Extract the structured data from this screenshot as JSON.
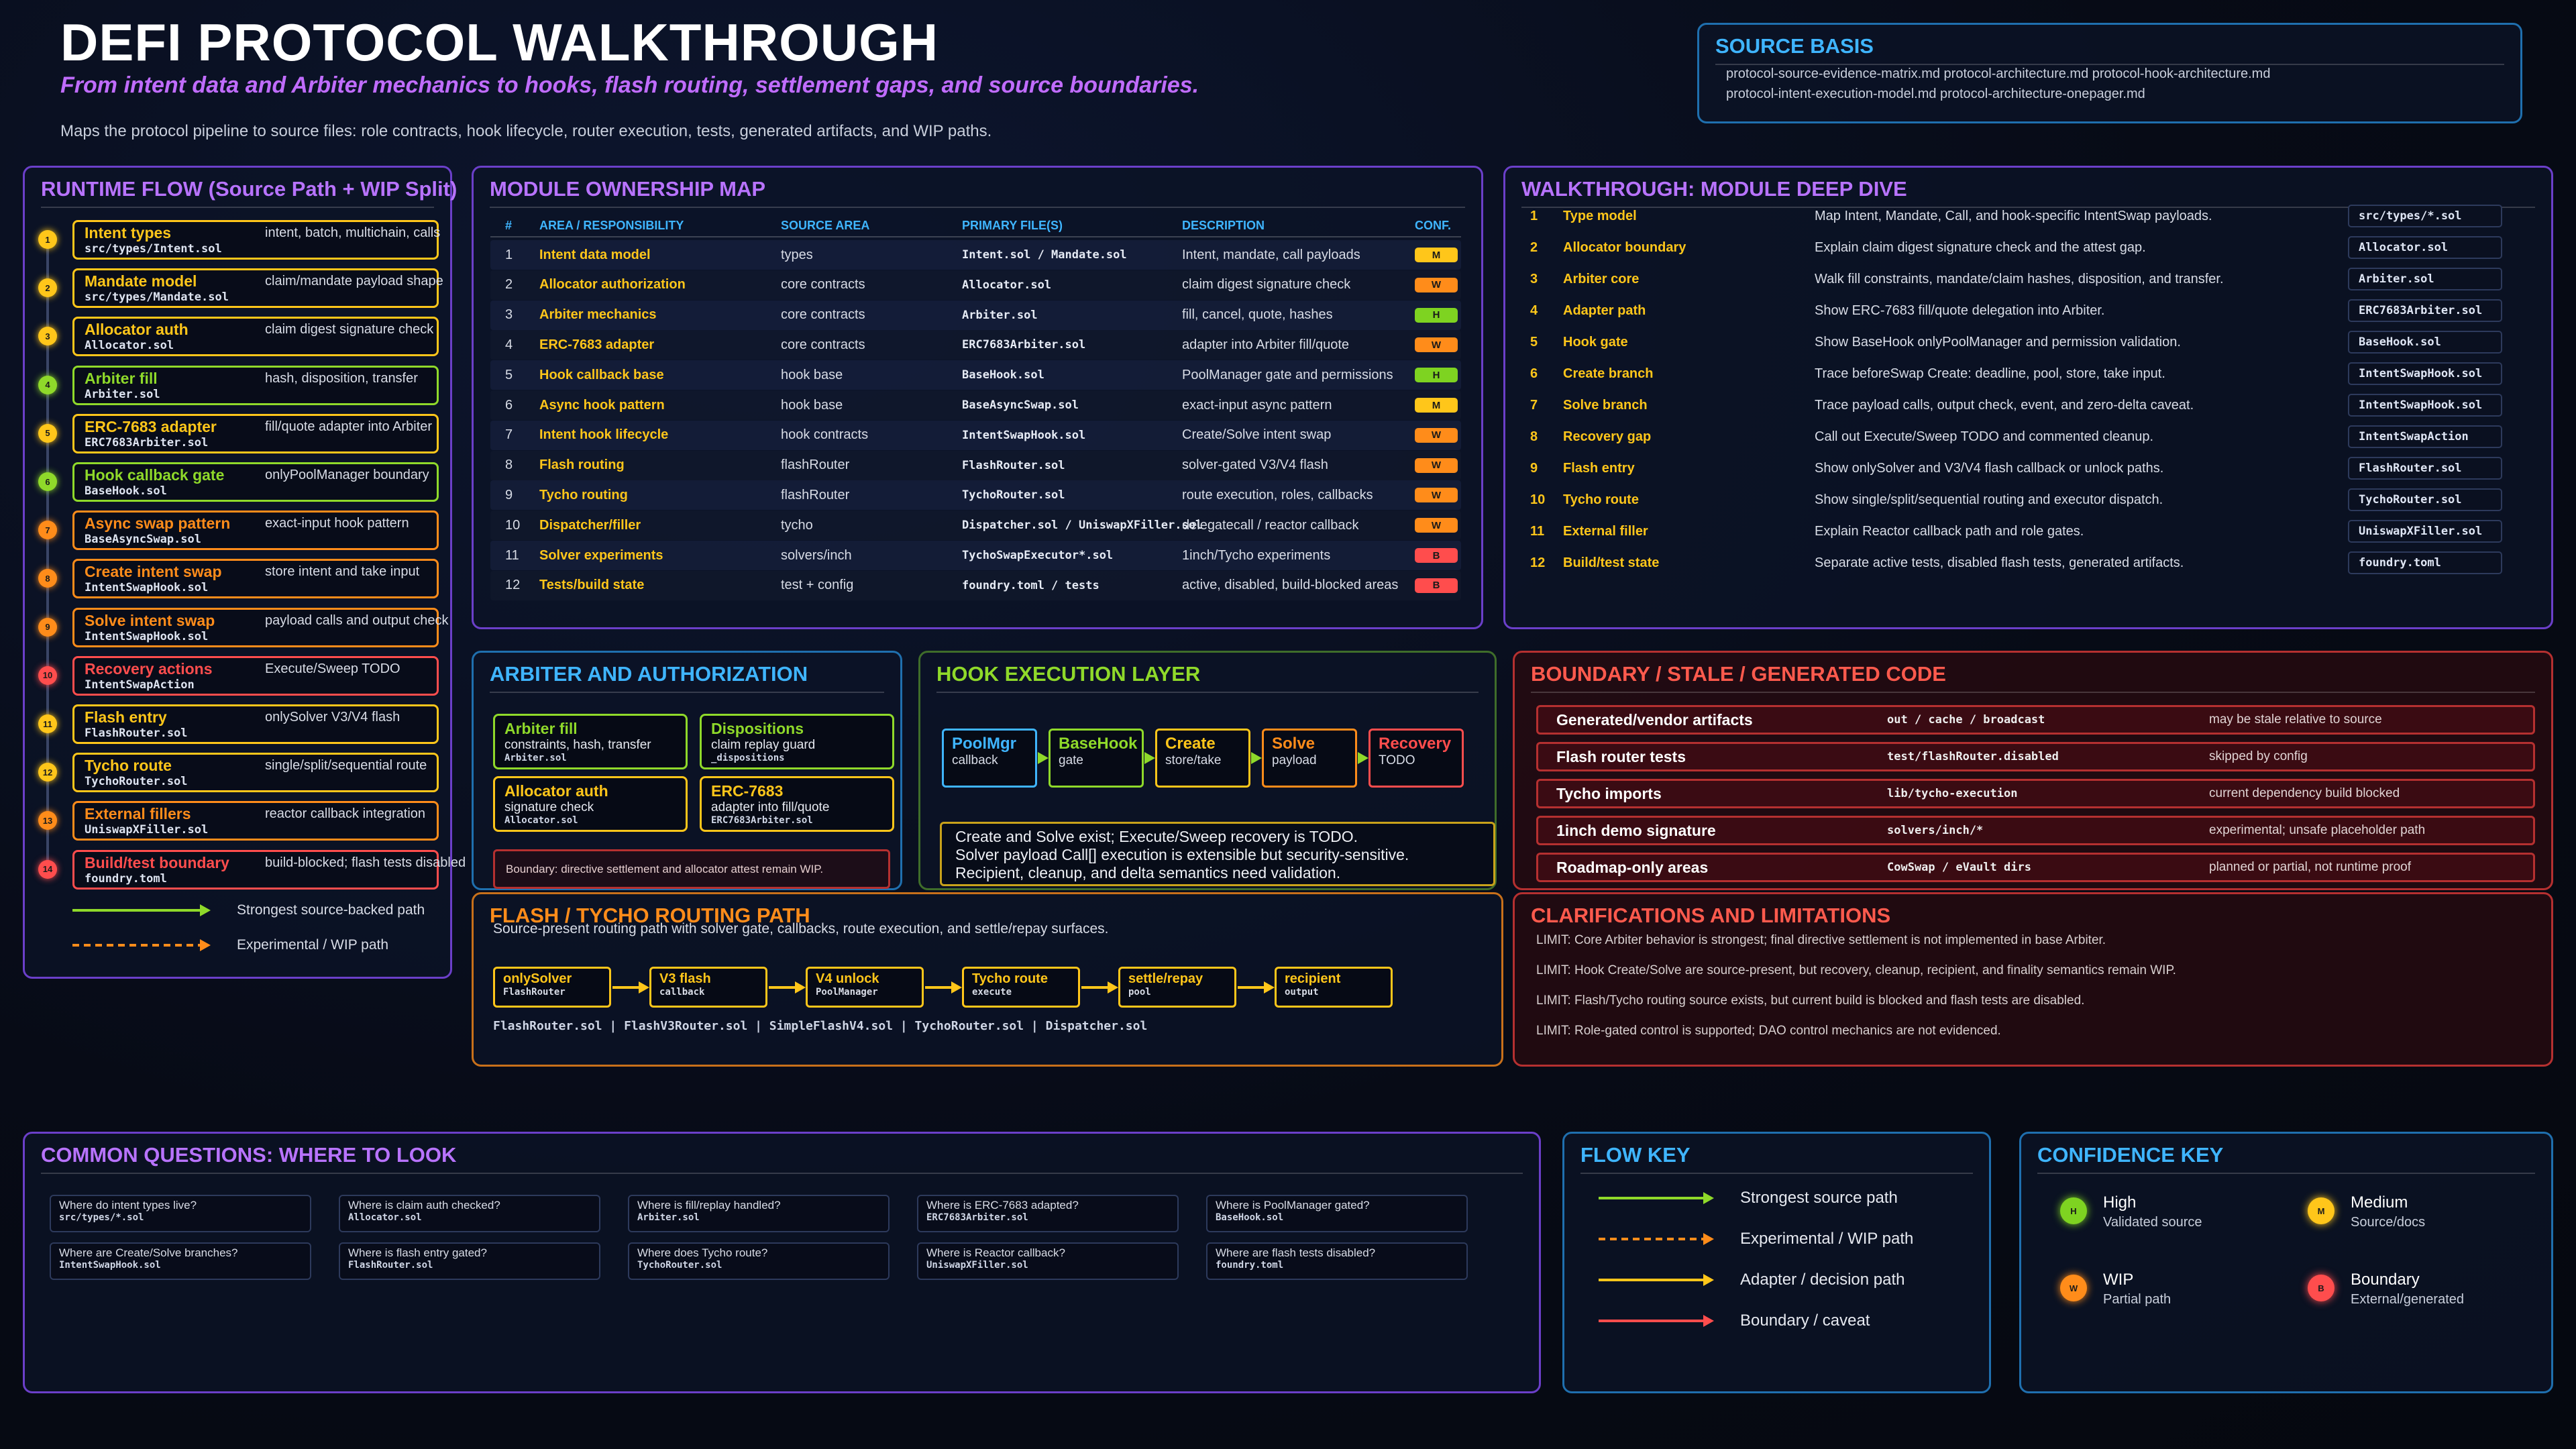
{
  "header": {
    "title": "DEFI PROTOCOL WALKTHROUGH",
    "subtitle": "From intent data and Arbiter mechanics to hooks, flash routing, settlement gaps, and source boundaries.",
    "description": "Maps the protocol pipeline to source files: role contracts, hook lifecycle, router execution, tests, generated artifacts, and WIP paths."
  },
  "source_basis": {
    "title": "SOURCE BASIS",
    "lines": [
      "protocol-source-evidence-matrix.md protocol-architecture.md protocol-hook-architecture.md",
      "protocol-intent-execution-model.md protocol-architecture-onepager.md"
    ]
  },
  "runtime_flow": {
    "title": "RUNTIME FLOW (Source Path + WIP Split)",
    "steps": [
      {
        "num": "1",
        "title": "Intent types",
        "file": "src/types/Intent.sol",
        "note": "intent, batch, multichain, calls",
        "color": "#ffc61a"
      },
      {
        "num": "2",
        "title": "Mandate model",
        "file": "src/types/Mandate.sol",
        "note": "claim/mandate payload shape",
        "color": "#ffc61a"
      },
      {
        "num": "3",
        "title": "Allocator auth",
        "file": "Allocator.sol",
        "note": "claim digest signature check",
        "color": "#ffc61a"
      },
      {
        "num": "4",
        "title": "Arbiter fill",
        "file": "Arbiter.sol",
        "note": "hash, disposition, transfer",
        "color": "#8fd92a"
      },
      {
        "num": "5",
        "title": "ERC-7683 adapter",
        "file": "ERC7683Arbiter.sol",
        "note": "fill/quote adapter into Arbiter",
        "color": "#ffc61a"
      },
      {
        "num": "6",
        "title": "Hook callback gate",
        "file": "BaseHook.sol",
        "note": "onlyPoolManager boundary",
        "color": "#8fd92a"
      },
      {
        "num": "7",
        "title": "Async swap pattern",
        "file": "BaseAsyncSwap.sol",
        "note": "exact-input hook pattern",
        "color": "#ff8c1a"
      },
      {
        "num": "8",
        "title": "Create intent swap",
        "file": "IntentSwapHook.sol",
        "note": "store intent and take input",
        "color": "#ff8c1a"
      },
      {
        "num": "9",
        "title": "Solve intent swap",
        "file": "IntentSwapHook.sol",
        "note": "payload calls and output check",
        "color": "#ff8c1a"
      },
      {
        "num": "10",
        "title": "Recovery actions",
        "file": "IntentSwapAction",
        "note": "Execute/Sweep TODO",
        "color": "#ff4d4d"
      },
      {
        "num": "11",
        "title": "Flash entry",
        "file": "FlashRouter.sol",
        "note": "onlySolver V3/V4 flash",
        "color": "#ffc61a"
      },
      {
        "num": "12",
        "title": "Tycho route",
        "file": "TychoRouter.sol",
        "note": "single/split/sequential route",
        "color": "#ffc61a"
      },
      {
        "num": "13",
        "title": "External fillers",
        "file": "UniswapXFiller.sol",
        "note": "reactor callback integration",
        "color": "#ff8c1a"
      },
      {
        "num": "14",
        "title": "Build/test boundary",
        "file": "foundry.toml",
        "note": "build-blocked; flash tests disabled",
        "color": "#ff4d4d"
      }
    ],
    "legend": [
      {
        "label": "Strongest source-backed path",
        "color": "#8fd92a",
        "dashed": false
      },
      {
        "label": "Experimental / WIP path",
        "color": "#ff8c1a",
        "dashed": true
      }
    ]
  },
  "module_map": {
    "title": "MODULE OWNERSHIP MAP",
    "headers": [
      "#",
      "AREA / RESPONSIBILITY",
      "SOURCE AREA",
      "PRIMARY FILE(S)",
      "DESCRIPTION",
      "CONF."
    ],
    "rows": [
      [
        "1",
        "Intent data model",
        "types",
        "Intent.sol / Mandate.sol",
        "Intent, mandate, call payloads",
        "M"
      ],
      [
        "2",
        "Allocator authorization",
        "core contracts",
        "Allocator.sol",
        "claim digest signature check",
        "W"
      ],
      [
        "3",
        "Arbiter mechanics",
        "core contracts",
        "Arbiter.sol",
        "fill, cancel, quote, hashes",
        "H"
      ],
      [
        "4",
        "ERC-7683 adapter",
        "core contracts",
        "ERC7683Arbiter.sol",
        "adapter into Arbiter fill/quote",
        "W"
      ],
      [
        "5",
        "Hook callback base",
        "hook base",
        "BaseHook.sol",
        "PoolManager gate and permissions",
        "H"
      ],
      [
        "6",
        "Async hook pattern",
        "hook base",
        "BaseAsyncSwap.sol",
        "exact-input async pattern",
        "M"
      ],
      [
        "7",
        "Intent hook lifecycle",
        "hook contracts",
        "IntentSwapHook.sol",
        "Create/Solve intent swap",
        "W"
      ],
      [
        "8",
        "Flash routing",
        "flashRouter",
        "FlashRouter.sol",
        "solver-gated V3/V4 flash",
        "W"
      ],
      [
        "9",
        "Tycho routing",
        "flashRouter",
        "TychoRouter.sol",
        "route execution, roles, callbacks",
        "W"
      ],
      [
        "10",
        "Dispatcher/filler",
        "tycho",
        "Dispatcher.sol / UniswapXFiller.sol",
        "delegatecall / reactor callback",
        "W"
      ],
      [
        "11",
        "Solver experiments",
        "solvers/inch",
        "TychoSwapExecutor*.sol",
        "1inch/Tycho experiments",
        "B"
      ],
      [
        "12",
        "Tests/build state",
        "test + config",
        "foundry.toml / tests",
        "active, disabled, build-blocked areas",
        "B"
      ]
    ]
  },
  "walkthrough": {
    "title": "WALKTHROUGH: MODULE DEEP DIVE",
    "items": [
      [
        "1",
        "Type model",
        "Map Intent, Mandate, Call, and hook-specific IntentSwap payloads.",
        "src/types/*.sol"
      ],
      [
        "2",
        "Allocator boundary",
        "Explain claim digest signature check and the attest gap.",
        "Allocator.sol"
      ],
      [
        "3",
        "Arbiter core",
        "Walk fill constraints, mandate/claim hashes, disposition, and transfer.",
        "Arbiter.sol"
      ],
      [
        "4",
        "Adapter path",
        "Show ERC-7683 fill/quote delegation into Arbiter.",
        "ERC7683Arbiter.sol"
      ],
      [
        "5",
        "Hook gate",
        "Show BaseHook onlyPoolManager and permission validation.",
        "BaseHook.sol"
      ],
      [
        "6",
        "Create branch",
        "Trace beforeSwap Create: deadline, pool, store, take input.",
        "IntentSwapHook.sol"
      ],
      [
        "7",
        "Solve branch",
        "Trace payload calls, output check, event, and zero-delta caveat.",
        "IntentSwapHook.sol"
      ],
      [
        "8",
        "Recovery gap",
        "Call out Execute/Sweep TODO and commented cleanup.",
        "IntentSwapAction"
      ],
      [
        "9",
        "Flash entry",
        "Show onlySolver and V3/V4 flash callback or unlock paths.",
        "FlashRouter.sol"
      ],
      [
        "10",
        "Tycho route",
        "Show single/split/sequential routing and executor dispatch.",
        "TychoRouter.sol"
      ],
      [
        "11",
        "External filler",
        "Explain Reactor callback path and role gates.",
        "UniswapXFiller.sol"
      ],
      [
        "12",
        "Build/test state",
        "Separate active tests, disabled flash tests, generated artifacts.",
        "foundry.toml"
      ]
    ]
  },
  "arbiter": {
    "title": "ARBITER AND AUTHORIZATION",
    "cards": [
      {
        "title": "Arbiter fill",
        "text": "constraints, hash, transfer",
        "file": "Arbiter.sol",
        "color": "#8fd92a"
      },
      {
        "title": "Dispositions",
        "text": "claim replay guard",
        "file": "_dispositions",
        "color": "#8fd92a"
      },
      {
        "title": "Allocator auth",
        "text": "signature check",
        "file": "Allocator.sol",
        "color": "#ffc61a"
      },
      {
        "title": "ERC-7683",
        "text": "adapter into fill/quote",
        "file": "ERC7683Arbiter.sol",
        "color": "#ffc61a"
      }
    ],
    "note": "Boundary: directive settlement and allocator attest remain WIP."
  },
  "hook_layer": {
    "title": "HOOK EXECUTION LAYER",
    "nodes": [
      {
        "title": "PoolMgr",
        "sub": "callback",
        "color": "#3fb5ff"
      },
      {
        "title": "BaseHook",
        "sub": "gate",
        "color": "#8fd92a"
      },
      {
        "title": "Create",
        "sub": "store/take",
        "color": "#ffc61a"
      },
      {
        "title": "Solve",
        "sub": "payload",
        "color": "#ff8c1a"
      },
      {
        "title": "Recovery",
        "sub": "TODO",
        "color": "#ff4d4d"
      }
    ],
    "note": [
      "Create and Solve exist; Execute/Sweep recovery is TODO.",
      "Solver payload Call[] execution is extensible but security-sensitive.",
      "Recipient, cleanup, and delta semantics need validation."
    ]
  },
  "boundary": {
    "title": "BOUNDARY / STALE / GENERATED CODE",
    "rows": [
      [
        "Generated/vendor artifacts",
        "out / cache / broadcast",
        "may be stale relative to source"
      ],
      [
        "Flash router tests",
        "test/flashRouter.disabled",
        "skipped by config"
      ],
      [
        "Tycho imports",
        "lib/tycho-execution",
        "current dependency build blocked"
      ],
      [
        "1inch demo signature",
        "solvers/inch/*",
        "experimental; unsafe placeholder path"
      ],
      [
        "Roadmap-only areas",
        "CowSwap / eVault dirs",
        "planned or partial, not runtime proof"
      ]
    ]
  },
  "flash_routing": {
    "title": "FLASH / TYCHO ROUTING PATH",
    "subtitle": "Source-present routing path with solver gate, callbacks, route execution, and settle/repay surfaces.",
    "nodes": [
      {
        "title": "onlySolver",
        "sub": "FlashRouter"
      },
      {
        "title": "V3 flash",
        "sub": "callback"
      },
      {
        "title": "V4 unlock",
        "sub": "PoolManager"
      },
      {
        "title": "Tycho route",
        "sub": "execute"
      },
      {
        "title": "settle/repay",
        "sub": "pool"
      },
      {
        "title": "recipient",
        "sub": "output"
      }
    ],
    "files": "FlashRouter.sol | FlashV3Router.sol | SimpleFlashV4.sol | TychoRouter.sol | Dispatcher.sol"
  },
  "clarifications": {
    "title": "CLARIFICATIONS AND LIMITATIONS",
    "items": [
      "LIMIT: Core Arbiter behavior is strongest; final directive settlement is not implemented in base Arbiter.",
      "LIMIT: Hook Create/Solve are source-present, but recovery, cleanup, recipient, and finality semantics remain WIP.",
      "LIMIT: Flash/Tycho routing source exists, but current build is blocked and flash tests are disabled.",
      "LIMIT: Role-gated control is supported; DAO control mechanics are not evidenced."
    ]
  },
  "common_questions": {
    "title": "COMMON QUESTIONS: WHERE TO LOOK",
    "items": [
      [
        "Where do intent types live?",
        "src/types/*.sol"
      ],
      [
        "Where is claim auth checked?",
        "Allocator.sol"
      ],
      [
        "Where is fill/replay handled?",
        "Arbiter.sol"
      ],
      [
        "Where is ERC-7683 adapted?",
        "ERC7683Arbiter.sol"
      ],
      [
        "Where is PoolManager gated?",
        "BaseHook.sol"
      ],
      [
        "Where are Create/Solve branches?",
        "IntentSwapHook.sol"
      ],
      [
        "Where is flash entry gated?",
        "FlashRouter.sol"
      ],
      [
        "Where does Tycho route?",
        "TychoRouter.sol"
      ],
      [
        "Where is Reactor callback?",
        "UniswapXFiller.sol"
      ],
      [
        "Where are flash tests disabled?",
        "foundry.toml"
      ]
    ]
  },
  "flow_key": {
    "title": "FLOW KEY",
    "items": [
      {
        "label": "Strongest source path",
        "color": "#8fd92a",
        "dashed": false
      },
      {
        "label": "Experimental / WIP path",
        "color": "#ff8c1a",
        "dashed": true
      },
      {
        "label": "Adapter / decision path",
        "color": "#ffc61a",
        "dashed": false
      },
      {
        "label": "Boundary / caveat",
        "color": "#ff4d4d",
        "dashed": false
      }
    ]
  },
  "confidence_key": {
    "title": "CONFIDENCE KEY",
    "items": [
      {
        "badge": "H",
        "label": "High",
        "note": "Validated source",
        "color": "#7ed321"
      },
      {
        "badge": "M",
        "label": "Medium",
        "note": "Source/docs",
        "color": "#ffc61a"
      },
      {
        "badge": "W",
        "label": "WIP",
        "note": "Partial path",
        "color": "#ff8c1a"
      },
      {
        "badge": "B",
        "label": "Boundary",
        "note": "External/generated",
        "color": "#ff4d4d"
      }
    ]
  }
}
